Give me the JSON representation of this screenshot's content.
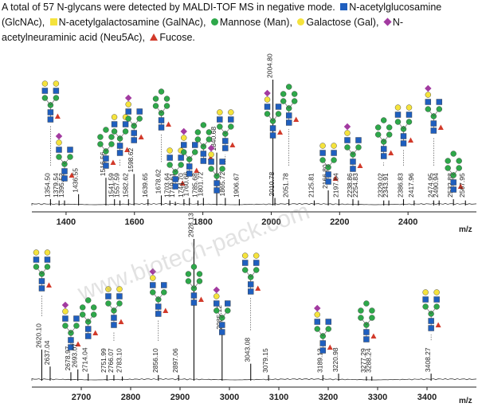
{
  "caption": {
    "text": "A total of 57 N-glycans were detected by MALDI-TOF MS in negative mode.",
    "legend": [
      {
        "label": "N-acetylglucosamine (GlcNAc)",
        "symbol": "square",
        "color": "#1f5fbf"
      },
      {
        "label": "N-acetylgalactosamine (GalNAc)",
        "symbol": "square",
        "color": "#f5e33c"
      },
      {
        "label": "Mannose (Man)",
        "symbol": "circle",
        "color": "#2ea84a"
      },
      {
        "label": "Galactose (Gal)",
        "symbol": "circle",
        "color": "#f5e33c"
      },
      {
        "label": "N-acetylneuraminic acid (Neu5Ac)",
        "symbol": "diamond",
        "color": "#a23aa0"
      },
      {
        "label": "Fucose.",
        "symbol": "triangle",
        "color": "#d23a2a"
      }
    ]
  },
  "watermark": "www.biotech-pack.com",
  "chart_data": [
    {
      "type": "spectrum",
      "xlabel": "m/z",
      "xlim": [
        1300,
        2600
      ],
      "ylim": [
        0,
        100
      ],
      "ticks": [
        1400,
        1600,
        1800,
        2000,
        2200,
        2400
      ],
      "peaks": [
        {
          "mz": 1354.5,
          "label": "1354.50",
          "intensity": 5
        },
        {
          "mz": 1379.54,
          "label": "1379.54",
          "intensity": 4
        },
        {
          "mz": 1395.52,
          "label": "1395.52",
          "intensity": 4
        },
        {
          "mz": 1436.55,
          "label": "1436.55",
          "intensity": 9
        },
        {
          "mz": 1516.56,
          "label": "1516.56",
          "intensity": 22
        },
        {
          "mz": 1541.59,
          "label": "1541.59",
          "intensity": 5
        },
        {
          "mz": 1557.59,
          "label": "1557.59",
          "intensity": 4
        },
        {
          "mz": 1582.62,
          "label": "1582.62",
          "intensity": 5
        },
        {
          "mz": 1598.62,
          "label": "1598.62",
          "intensity": 25
        },
        {
          "mz": 1639.65,
          "label": "1639.65",
          "intensity": 5
        },
        {
          "mz": 1678.62,
          "label": "1678.62",
          "intensity": 8
        },
        {
          "mz": 1703.64,
          "label": "1703.64",
          "intensity": 4
        },
        {
          "mz": 1719.61,
          "label": "1719.61",
          "intensity": 3
        },
        {
          "mz": 1744.7,
          "label": "1744.70",
          "intensity": 5
        },
        {
          "mz": 1760.66,
          "label": "1760.66",
          "intensity": 6
        },
        {
          "mz": 1785.68,
          "label": "1785.68",
          "intensity": 4
        },
        {
          "mz": 1801.72,
          "label": "1801.72",
          "intensity": 6
        },
        {
          "mz": 1840.68,
          "label": "1840.68",
          "intensity": 42
        },
        {
          "mz": 1865.72,
          "label": "1865.72",
          "intensity": 6
        },
        {
          "mz": 1906.67,
          "label": "1906.67",
          "intensity": 5
        },
        {
          "mz": 2004.8,
          "label": "2004.80",
          "intensity": 100
        },
        {
          "mz": 2010.78,
          "label": "2010.78",
          "intensity": 6
        },
        {
          "mz": 2051.78,
          "label": "2051.78",
          "intensity": 5
        },
        {
          "mz": 2125.81,
          "label": "2125.81",
          "intensity": 4
        },
        {
          "mz": 2166.8,
          "label": "2166.80",
          "intensity": 12
        },
        {
          "mz": 2197.84,
          "label": "2197.84",
          "intensity": 5
        },
        {
          "mz": 2238.86,
          "label": "2238.86",
          "intensity": 5
        },
        {
          "mz": 2254.83,
          "label": "2254.83",
          "intensity": 4
        },
        {
          "mz": 2329.02,
          "label": "2329.02",
          "intensity": 4
        },
        {
          "mz": 2343.91,
          "label": "2343.91",
          "intensity": 4
        },
        {
          "mz": 2386.83,
          "label": "2386.83",
          "intensity": 5
        },
        {
          "mz": 2417.96,
          "label": "2417.96",
          "intensity": 4
        },
        {
          "mz": 2474.95,
          "label": "2474.95",
          "intensity": 4
        },
        {
          "mz": 2490.94,
          "label": "2490.94",
          "intensity": 4
        },
        {
          "mz": 2532.88,
          "label": "2532.88",
          "intensity": 5
        },
        {
          "mz": 2567.95,
          "label": "2567.95",
          "intensity": 4
        }
      ]
    },
    {
      "type": "spectrum",
      "xlabel": "m/z",
      "xlim": [
        2600,
        3500
      ],
      "ylim": [
        0,
        100
      ],
      "ticks": [
        2700,
        2800,
        2900,
        3000,
        3100,
        3200,
        3300,
        3400
      ],
      "peaks": [
        {
          "mz": 2620.1,
          "label": "2620.10",
          "intensity": 22
        },
        {
          "mz": 2637.04,
          "label": "2637.04",
          "intensity": 10
        },
        {
          "mz": 2678.97,
          "label": "2678.97",
          "intensity": 6
        },
        {
          "mz": 2693.07,
          "label": "2693.07",
          "intensity": 8
        },
        {
          "mz": 2714.04,
          "label": "2714.04",
          "intensity": 5
        },
        {
          "mz": 2751.99,
          "label": "2751.99",
          "intensity": 4
        },
        {
          "mz": 2766.07,
          "label": "2766.07",
          "intensity": 4
        },
        {
          "mz": 2783.1,
          "label": "2783.10",
          "intensity": 3
        },
        {
          "mz": 2856.1,
          "label": "2856.10",
          "intensity": 4
        },
        {
          "mz": 2897.06,
          "label": "2897.06",
          "intensity": 4
        },
        {
          "mz": 2928.13,
          "label": "2928.13",
          "intensity": 100
        },
        {
          "mz": 2985.12,
          "label": "2985.12",
          "intensity": 35
        },
        {
          "mz": 3043.08,
          "label": "3043.08",
          "intensity": 12
        },
        {
          "mz": 3079.15,
          "label": "3079.15",
          "intensity": 4
        },
        {
          "mz": 3189.13,
          "label": "3189.13",
          "intensity": 4
        },
        {
          "mz": 3220.98,
          "label": "3220.98",
          "intensity": 5
        },
        {
          "mz": 3277.29,
          "label": "3277.29",
          "intensity": 3
        },
        {
          "mz": 3288.24,
          "label": "3288.24",
          "intensity": 3
        },
        {
          "mz": 3408.27,
          "label": "3408.27",
          "intensity": 5
        }
      ]
    }
  ]
}
